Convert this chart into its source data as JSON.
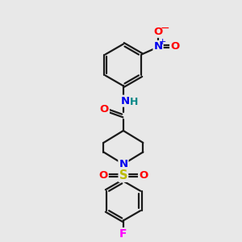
{
  "background_color": "#e8e8e8",
  "bond_color": "#1a1a1a",
  "bond_width": 1.6,
  "atom_colors": {
    "O": "#ff0000",
    "N": "#0000ee",
    "S": "#bbbb00",
    "F": "#ff00ff",
    "C": "#1a1a1a",
    "H": "#008888"
  },
  "font_size_atom": 9.5
}
